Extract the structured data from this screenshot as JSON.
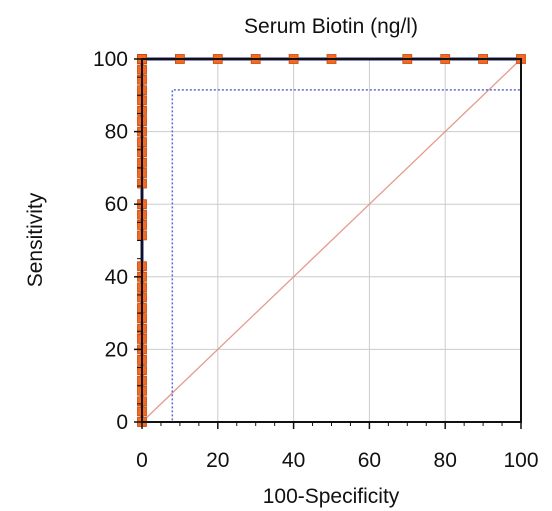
{
  "chart_data": {
    "type": "line",
    "title": "Serum Biotin (ng/l)",
    "xlabel": "100-Specificity",
    "ylabel": "Sensitivity",
    "xlim": [
      0,
      100
    ],
    "ylim": [
      0,
      100
    ],
    "x_ticks": [
      0,
      20,
      40,
      60,
      80,
      100
    ],
    "y_ticks": [
      0,
      20,
      40,
      60,
      80,
      100
    ],
    "grid": true,
    "colors": {
      "roc": "#1c1c8c",
      "marker": "#f26a21",
      "marker_edge": "#c44a10",
      "ci": "#5a6ad8",
      "diagonal": "#e49a8c",
      "grid": "#cccccc"
    },
    "series": [
      {
        "style": "roc-curve",
        "x": [
          0,
          0,
          100
        ],
        "y": [
          0,
          100,
          100
        ]
      },
      {
        "style": "markers",
        "x": [
          0,
          0,
          0,
          0,
          0,
          0,
          0,
          0,
          0,
          0,
          0,
          0,
          0,
          0,
          0,
          0,
          0,
          0,
          0,
          0,
          0,
          0,
          0,
          0,
          0,
          0,
          0,
          0,
          0,
          0,
          0,
          0,
          0,
          0,
          0,
          0,
          10,
          20,
          30,
          40,
          50,
          70,
          80,
          90,
          100
        ],
        "y": [
          0,
          2.9,
          5.7,
          8.6,
          11.4,
          14.3,
          17.1,
          20,
          22.9,
          25.7,
          28.6,
          31.4,
          34.3,
          37.1,
          40,
          42.9,
          51.4,
          54.3,
          57.1,
          60,
          65.7,
          68.6,
          71.4,
          74.3,
          77.1,
          80,
          82.9,
          85.7,
          88.6,
          91.4,
          94.3,
          97.1,
          100,
          100,
          100,
          100,
          100,
          100,
          100,
          100,
          100,
          100,
          100,
          100,
          100
        ]
      },
      {
        "style": "ci-lower",
        "x": [
          0,
          8,
          8,
          100,
          100
        ],
        "y": [
          0,
          0,
          91.5,
          91.5,
          100
        ]
      },
      {
        "style": "reference-diagonal",
        "x": [
          0,
          100
        ],
        "y": [
          0,
          100
        ]
      }
    ]
  }
}
